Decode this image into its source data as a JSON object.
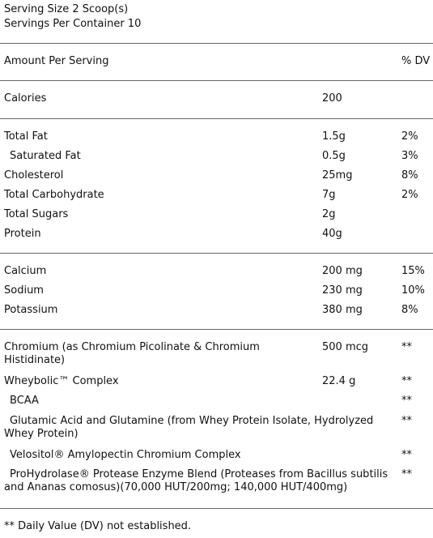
{
  "header": {
    "serving_size": "Serving Size  2 Scoop(s)",
    "servings_per_container": "Servings Per Container  10"
  },
  "columns": {
    "amount_per_serving": "Amount Per Serving",
    "percent_dv": "% DV"
  },
  "calories": {
    "label": "Calories",
    "value": "200"
  },
  "macros": [
    {
      "name": "Total Fat",
      "amount": "1.5g",
      "dv": "2%"
    },
    {
      "name": "Saturated Fat",
      "amount": "0.5g",
      "dv": "3%"
    },
    {
      "name": "Cholesterol",
      "amount": "25mg",
      "dv": "8%"
    },
    {
      "name": "Total Carbohydrate",
      "amount": "7g",
      "dv": "2%"
    },
    {
      "name": "Total Sugars",
      "amount": "2g",
      "dv": ""
    },
    {
      "name": "Protein",
      "amount": "40g",
      "dv": ""
    }
  ],
  "minerals": [
    {
      "name": "Calcium",
      "amount": "200 mg",
      "dv": "15%"
    },
    {
      "name": "Sodium",
      "amount": "230 mg",
      "dv": "10%"
    },
    {
      "name": "Potassium",
      "amount": "380 mg",
      "dv": "8%"
    }
  ],
  "other": [
    {
      "name": "Chromium (as Chromium Picolinate & Chromium Histidinate)",
      "amount": "500 mcg",
      "dv": "**"
    },
    {
      "name": "Wheybolic™ Complex",
      "amount": "22.4 g",
      "dv": "**"
    },
    {
      "name": "BCAA",
      "amount": "",
      "dv": "**"
    },
    {
      "name": "Glutamic Acid and Glutamine (from Whey Protein Isolate, Hydrolyzed Whey Protein)",
      "amount": "",
      "dv": "**"
    },
    {
      "name": "Velositol® Amylopectin Chromium Complex",
      "amount": "",
      "dv": "**"
    },
    {
      "name": "ProHydrolase® Protease Enzyme Blend (Proteases from Bacillus subtilis and Ananas comosus)(70,000 HUT/200mg; 140,000 HUT/400mg)",
      "amount": "",
      "dv": "**"
    }
  ],
  "footnote": "** Daily Value (DV) not established."
}
